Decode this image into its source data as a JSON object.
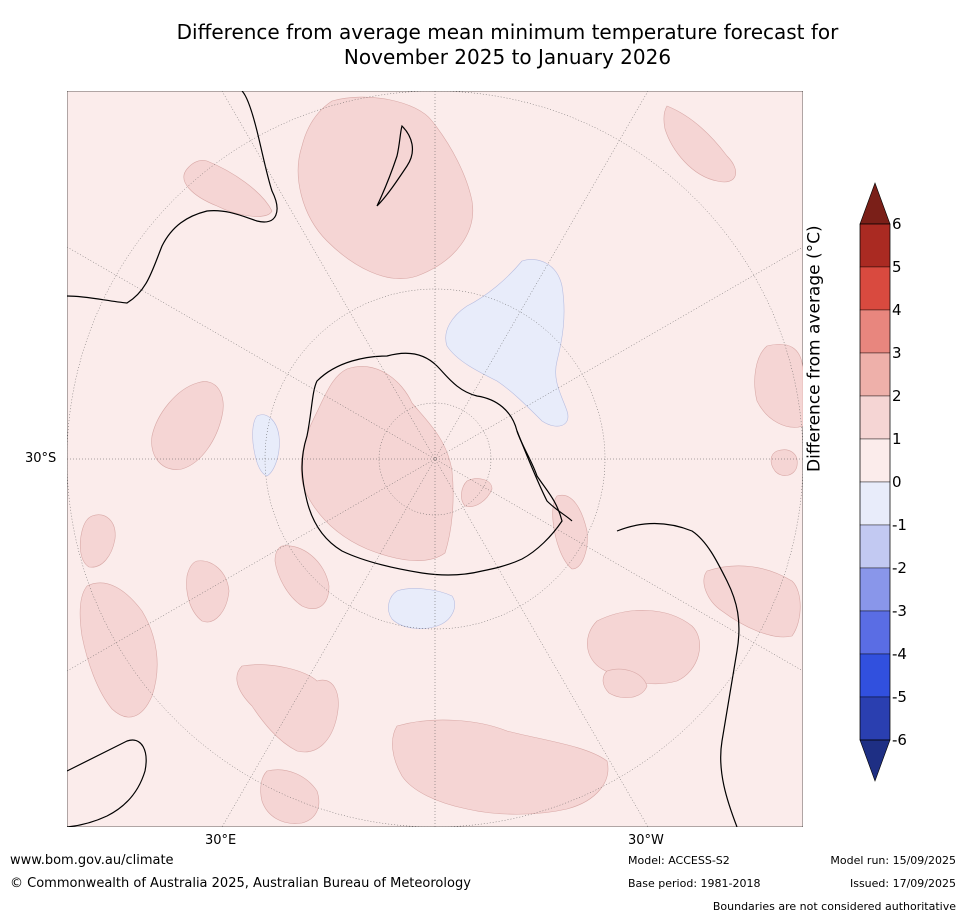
{
  "title_line1": "Difference from average mean minimum temperature forecast for",
  "title_line2": "November 2025 to January 2026",
  "map": {
    "lat_labels": [
      "30°S"
    ],
    "lon_labels": [
      "30°E",
      "30°W"
    ],
    "colors": {
      "background": "#fbeceb",
      "warm_1_2": "#f5d5d4",
      "cool_0_m1": "#e8ecfa",
      "coast": "#000000",
      "grid": "#555555"
    }
  },
  "colorbar": {
    "label": "Difference from average ($^\\circ$C)",
    "label_text": "Difference from average (°C)",
    "ticks": [
      "6",
      "5",
      "4",
      "3",
      "2",
      "1",
      "0",
      "-1",
      "-2",
      "-3",
      "-4",
      "-5",
      "-6"
    ],
    "colors": [
      "#aa2a22",
      "#d94a3f",
      "#e8867e",
      "#eeb0aa",
      "#f5d5d4",
      "#fbeceb",
      "#e8ecfa",
      "#c2c9f2",
      "#8996ea",
      "#5a6de4",
      "#3150de",
      "#2a3fb0"
    ],
    "over_color": "#7a1f18",
    "under_color": "#1e2f84"
  },
  "footer": {
    "website": "www.bom.gov.au/climate",
    "copyright": "© Commonwealth of Australia 2025, Australian Bureau of Meteorology",
    "model": "Model: ACCESS-S2",
    "base_period": "Base period: 1981-2018",
    "model_run": "Model run: 15/09/2025",
    "issued": "Issued: 17/09/2025",
    "disclaimer": "Boundaries are not considered authoritative"
  }
}
